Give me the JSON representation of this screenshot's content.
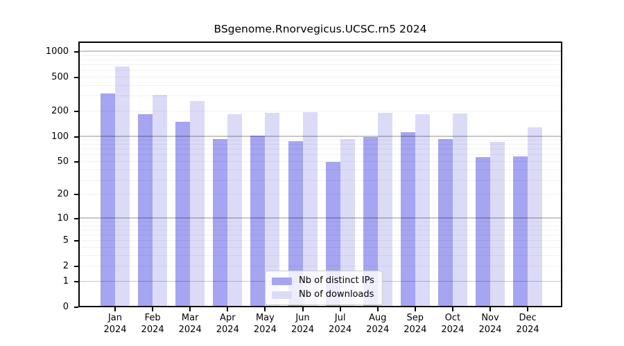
{
  "title": "BSgenome.Rnorvegicus.UCSC.rn5 2024",
  "chart_data": {
    "type": "bar",
    "title": "BSgenome.Rnorvegicus.UCSC.rn5 2024",
    "categories": [
      "Jan 2024",
      "Feb 2024",
      "Mar 2024",
      "Apr 2024",
      "May 2024",
      "Jun 2024",
      "Jul 2024",
      "Aug 2024",
      "Sep 2024",
      "Oct 2024",
      "Nov 2024",
      "Dec 2024"
    ],
    "series": [
      {
        "name": "Nb of distinct IPs",
        "color": "#a5a5f1",
        "values": [
          325,
          185,
          150,
          94,
          102,
          88,
          50,
          99,
          114,
          94,
          57,
          58
        ]
      },
      {
        "name": "Nb of downloads",
        "color": "#dbdbf8",
        "values": [
          680,
          310,
          265,
          185,
          191,
          196,
          94,
          190,
          183,
          188,
          87,
          128
        ]
      }
    ],
    "ylabel": "",
    "xlabel": "",
    "yticks": [
      0,
      1,
      2,
      5,
      10,
      20,
      50,
      100,
      200,
      500,
      1000
    ],
    "scale": "log1p",
    "ylim": [
      0,
      1300
    ],
    "grid": true,
    "grid_minor_multiples": [
      2,
      3,
      4,
      5,
      6,
      7,
      8,
      9
    ],
    "grid_major": [
      1,
      10,
      100,
      1000
    ],
    "legend_position": "lower center"
  }
}
